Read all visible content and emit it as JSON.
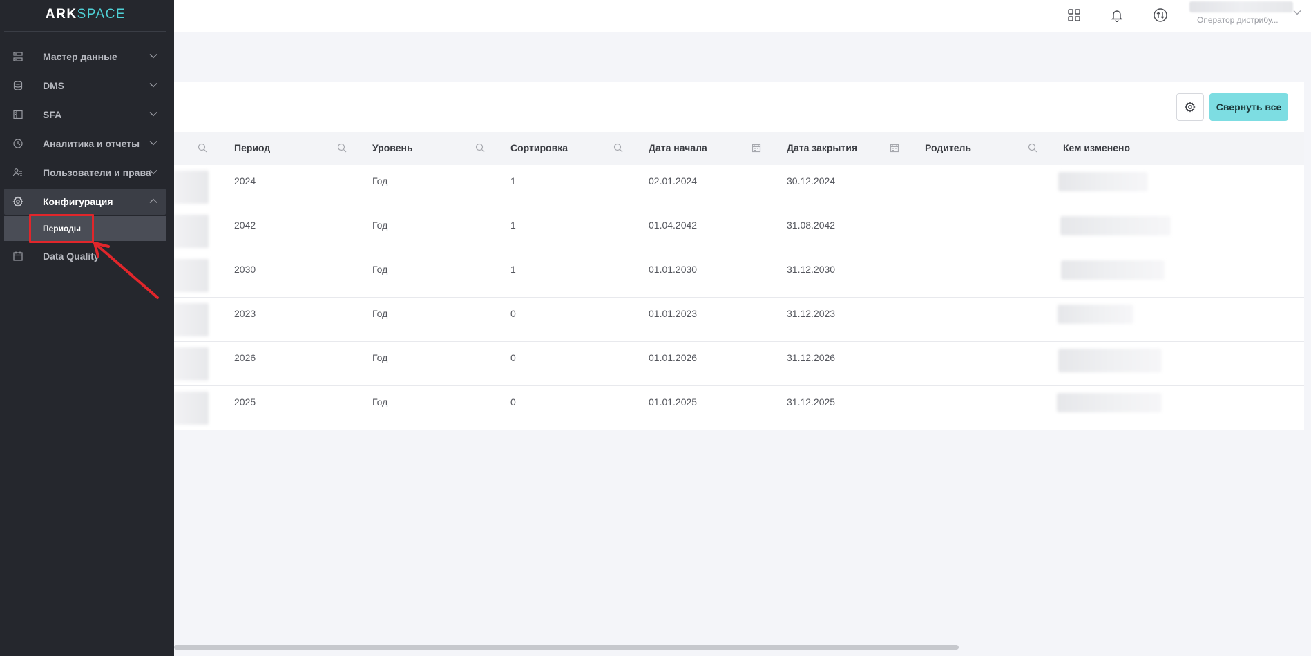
{
  "app": {
    "logo_brand": "ARK",
    "logo_space": "SPACE"
  },
  "topbar": {
    "icons": [
      "apps-grid-icon",
      "bell-icon",
      "swap-icon"
    ],
    "user_role": "Оператор дистрибу..."
  },
  "sidebar": {
    "items": [
      {
        "label": "Мастер данные",
        "icon": "database-rows-icon",
        "expanded": false
      },
      {
        "label": "DMS",
        "icon": "stack-icon",
        "expanded": false
      },
      {
        "label": "SFA",
        "icon": "panel-icon",
        "expanded": false
      },
      {
        "label": "Аналитика и отчеты",
        "icon": "clock-icon",
        "expanded": false
      },
      {
        "label": "Пользователи и права",
        "icon": "users-icon",
        "expanded": false
      },
      {
        "label": "Конфигурация",
        "icon": "gear-icon",
        "expanded": true
      },
      {
        "label": "Data Quality",
        "icon": "calendar-icon",
        "expanded": false
      }
    ],
    "sub_items": [
      {
        "label": "Периоды",
        "selected": true
      }
    ]
  },
  "toolbar": {
    "collapse_all_label": "Свернуть все"
  },
  "table": {
    "columns": [
      {
        "label": "Период",
        "filter": "search"
      },
      {
        "label": "Уровень",
        "filter": "search"
      },
      {
        "label": "Сортировка",
        "filter": "search"
      },
      {
        "label": "Дата начала",
        "filter": "calendar"
      },
      {
        "label": "Дата закрытия",
        "filter": "calendar"
      },
      {
        "label": "Родитель",
        "filter": "search"
      },
      {
        "label": "Кем изменено",
        "filter": "none"
      }
    ],
    "rows": [
      {
        "period": "2024",
        "level": "Год",
        "sort": "1",
        "start": "02.01.2024",
        "end": "30.12.2024",
        "parent": ""
      },
      {
        "period": "2042",
        "level": "Год",
        "sort": "1",
        "start": "01.04.2042",
        "end": "31.08.2042",
        "parent": ""
      },
      {
        "period": "2030",
        "level": "Год",
        "sort": "1",
        "start": "01.01.2030",
        "end": "31.12.2030",
        "parent": ""
      },
      {
        "period": "2023",
        "level": "Год",
        "sort": "0",
        "start": "01.01.2023",
        "end": "31.12.2023",
        "parent": ""
      },
      {
        "period": "2026",
        "level": "Год",
        "sort": "0",
        "start": "01.01.2026",
        "end": "31.12.2026",
        "parent": ""
      },
      {
        "period": "2025",
        "level": "Год",
        "sort": "0",
        "start": "01.01.2025",
        "end": "31.12.2025",
        "parent": ""
      }
    ]
  },
  "colors": {
    "sidebar_bg": "#25272d",
    "accent": "#7ddde2",
    "annotation": "#e0262b"
  }
}
